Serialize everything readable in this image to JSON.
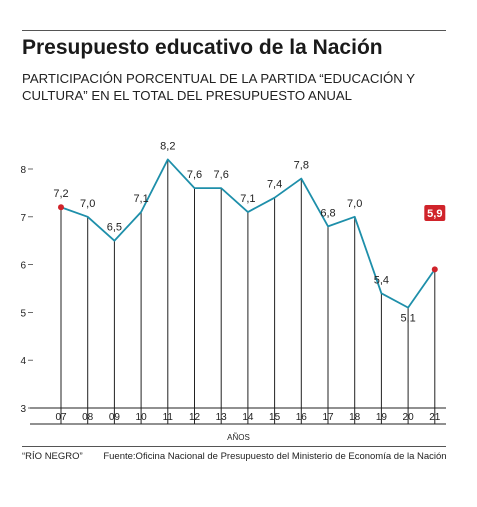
{
  "header": {
    "title": "Presupuesto educativo de la Nación",
    "subtitle": "PARTICIPACIÓN PORCENTUAL DE LA PARTIDA “EDUCACIÓN Y CULTURA” EN EL TOTAL DEL PRESUPUESTO ANUAL"
  },
  "footer": {
    "credit": "“RÍO NEGRO”",
    "source": "Fuente:Oficina Nacional de Presupuesto del Ministerio de Economía de la Nación"
  },
  "colors": {
    "line": "#1e8faa",
    "marker": "#d0232a",
    "highlight_bg": "#d0232a",
    "highlight_text": "#ffffff"
  },
  "chart_data": {
    "type": "line",
    "title": "Presupuesto educativo de la Nación",
    "subtitle": "PARTICIPACIÓN PORCENTUAL DE LA PARTIDA “EDUCACIÓN Y CULTURA” EN EL TOTAL DEL PRESUPUESTO ANUAL",
    "xlabel": "AÑOS",
    "ylabel": "",
    "categories": [
      "07",
      "08",
      "09",
      "10",
      "11",
      "12",
      "13",
      "14",
      "15",
      "16",
      "17",
      "18",
      "19",
      "20",
      "21"
    ],
    "values": [
      7.2,
      7.0,
      6.5,
      7.1,
      8.2,
      7.6,
      7.6,
      7.1,
      7.4,
      7.8,
      6.8,
      7.0,
      5.4,
      5.1,
      5.9
    ],
    "value_labels": [
      "7,2",
      "7,0",
      "6,5",
      "7,1",
      "8,2",
      "7,6",
      "7,6",
      "7,1",
      "7,4",
      "7,8",
      "6,8",
      "7,0",
      "5,4",
      "5,1",
      "5,9"
    ],
    "yticks": [
      3,
      4,
      5,
      6,
      7,
      8
    ],
    "ylim": [
      3,
      8.4
    ],
    "grid": false,
    "marker_points": [
      "07",
      "21"
    ],
    "highlight_label": "21"
  }
}
